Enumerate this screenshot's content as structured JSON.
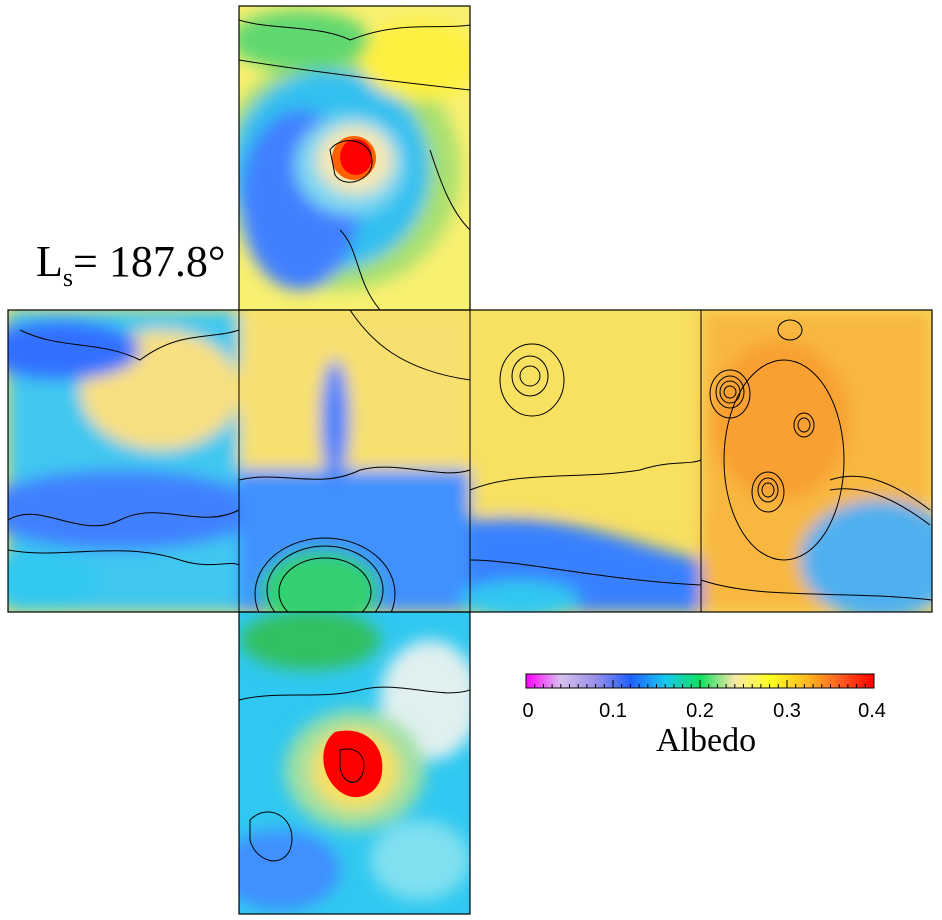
{
  "label": {
    "prefix": "L",
    "subscript": "s",
    "value": "= 187.8°"
  },
  "colorbar": {
    "title": "Albedo",
    "ticks": [
      "0",
      "0.1",
      "0.2",
      "0.3",
      "0.4"
    ],
    "range": [
      0,
      0.4
    ],
    "stops": [
      "#ff00ff",
      "#d8c0ee",
      "#9890e8",
      "#2060ff",
      "#18c8f0",
      "#10e060",
      "#f8e8a8",
      "#ffff20",
      "#ffc020",
      "#ff6020",
      "#ff0000"
    ]
  },
  "faces": [
    {
      "name": "north-polar-face",
      "base": "#f8f070"
    },
    {
      "name": "equatorial-face-1",
      "base": "#30c0f0"
    },
    {
      "name": "equatorial-face-2",
      "base": "#f0e070"
    },
    {
      "name": "equatorial-face-3",
      "base": "#f8e060"
    },
    {
      "name": "equatorial-face-4",
      "base": "#f8c040"
    },
    {
      "name": "south-polar-face",
      "base": "#30c8f0"
    }
  ]
}
